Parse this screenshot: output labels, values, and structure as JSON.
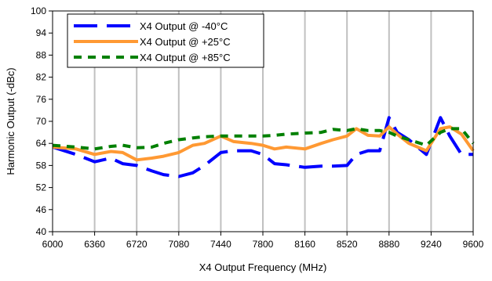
{
  "chart_data": {
    "type": "line",
    "title": "",
    "xlabel": "X4 Output Frequency (MHz)",
    "ylabel": "Harmonic Output (-dBc)",
    "xlim": [
      6000,
      9600
    ],
    "ylim": [
      40,
      100
    ],
    "x_ticks": [
      6000,
      6360,
      6720,
      7080,
      7440,
      7800,
      8160,
      8520,
      8880,
      9240,
      9600
    ],
    "y_ticks": [
      40,
      46,
      52,
      58,
      64,
      70,
      76,
      82,
      88,
      94,
      100
    ],
    "grid": "vertical",
    "legend_position": "top-left",
    "series": [
      {
        "name": "X4 Output @ -40°C",
        "color": "#0000ff",
        "style": "long-dash",
        "x": [
          6000,
          6200,
          6360,
          6500,
          6600,
          6720,
          6850,
          6950,
          7080,
          7200,
          7300,
          7440,
          7550,
          7700,
          7800,
          7900,
          8000,
          8160,
          8300,
          8400,
          8520,
          8600,
          8700,
          8800,
          8880,
          8950,
          9050,
          9200,
          9320,
          9400,
          9500,
          9600
        ],
        "y": [
          63,
          61,
          59,
          60,
          58.5,
          58,
          56.5,
          55.5,
          55,
          56,
          58,
          61.5,
          62,
          62,
          61,
          58.5,
          58.2,
          57.5,
          57.8,
          57.8,
          58,
          61,
          62,
          62,
          71,
          67,
          65,
          61,
          71,
          66,
          61,
          61
        ]
      },
      {
        "name": "X4 Output @ +25°C",
        "color": "#ff9933",
        "style": "solid",
        "x": [
          6000,
          6200,
          6360,
          6500,
          6600,
          6720,
          6850,
          6950,
          7080,
          7200,
          7300,
          7440,
          7550,
          7700,
          7800,
          7900,
          8000,
          8160,
          8300,
          8400,
          8520,
          8600,
          8700,
          8800,
          8880,
          8950,
          9050,
          9200,
          9320,
          9400,
          9500,
          9600
        ],
        "y": [
          63,
          62.5,
          61,
          61.8,
          61.5,
          59.5,
          60,
          60.5,
          61.5,
          63.5,
          64,
          66,
          64.5,
          64,
          63.5,
          62.5,
          63,
          62.5,
          64,
          65,
          66,
          68,
          66.2,
          66,
          68.5,
          66.5,
          64,
          62,
          68,
          68.5,
          66.5,
          62
        ]
      },
      {
        "name": "X4 Output @ +85°C",
        "color": "#008000",
        "style": "dashed",
        "x": [
          6000,
          6200,
          6360,
          6500,
          6600,
          6720,
          6850,
          6950,
          7080,
          7200,
          7300,
          7440,
          7550,
          7700,
          7800,
          7900,
          8000,
          8160,
          8300,
          8400,
          8520,
          8600,
          8700,
          8800,
          8880,
          8950,
          9050,
          9200,
          9320,
          9400,
          9500,
          9600
        ],
        "y": [
          63.5,
          63,
          62.5,
          63.2,
          63.5,
          62.8,
          63,
          64,
          65,
          65.5,
          65.8,
          66,
          66,
          66,
          66,
          66.2,
          66.5,
          66.8,
          67,
          67.8,
          67.5,
          68,
          67.5,
          67.5,
          67,
          66,
          65,
          63.5,
          67,
          68,
          68,
          64
        ]
      }
    ]
  }
}
